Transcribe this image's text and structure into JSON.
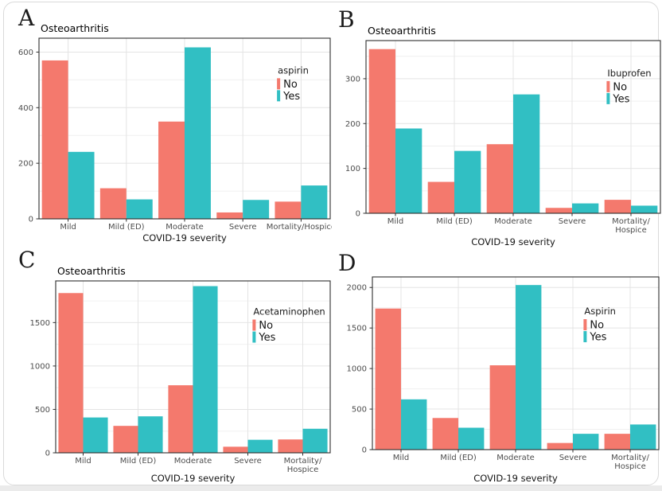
{
  "page": {
    "background": "#ffffff",
    "card_border": "#dadada",
    "bottom_strip_color": "#ebebeb"
  },
  "palette": {
    "no": "#F4796D",
    "yes": "#31BFC3",
    "grid_major": "#e4e4e4",
    "grid_minor": "#f0f0f0",
    "panel_border": "#2f2f2f",
    "tick_text": "#4d4d4d",
    "axis_label_text": "#141414",
    "title_text": "#000000"
  },
  "panels": [
    {
      "letter": "A"
    },
    {
      "letter": "B"
    },
    {
      "letter": "C"
    },
    {
      "letter": "D"
    }
  ],
  "chart_data": [
    {
      "type": "bar",
      "panel": "A",
      "title": "Osteoarthritis",
      "xlabel": "COVID-19 severity",
      "ylabel": "",
      "categories": [
        "Mild",
        "Mild (ED)",
        "Moderate",
        "Severe",
        "Mortality/Hospice"
      ],
      "tick_lines": [
        [
          "Mild"
        ],
        [
          "Mild (ED)"
        ],
        [
          "Moderate"
        ],
        [
          "Severe"
        ],
        [
          "Mortality/Hospice"
        ]
      ],
      "yticks": [
        0,
        200,
        400,
        600
      ],
      "yminor": [
        100,
        300,
        500
      ],
      "ylim": [
        0,
        650
      ],
      "grid": true,
      "legend": {
        "title": "aspirin",
        "position": "inside-right"
      },
      "series": [
        {
          "name": "No",
          "color": "#F4796D",
          "values": [
            570,
            110,
            350,
            23,
            62
          ]
        },
        {
          "name": "Yes",
          "color": "#31BFC3",
          "values": [
            241,
            70,
            617,
            68,
            120
          ]
        }
      ]
    },
    {
      "type": "bar",
      "panel": "B",
      "title": "Osteoarthritis",
      "xlabel": "COVID-19 severity",
      "ylabel": "",
      "categories": [
        "Mild",
        "Mild (ED)",
        "Moderate",
        "Severe",
        "Mortality/Hospice"
      ],
      "tick_lines": [
        [
          "Mild"
        ],
        [
          "Mild (ED)"
        ],
        [
          "Moderate"
        ],
        [
          "Severe"
        ],
        [
          "Mortality/",
          "Hospice"
        ]
      ],
      "yticks": [
        0,
        100,
        200,
        300
      ],
      "yminor": [
        50,
        150,
        250,
        350
      ],
      "ylim": [
        0,
        385
      ],
      "grid": true,
      "legend": {
        "title": "Ibuprofen",
        "position": "inside-right"
      },
      "series": [
        {
          "name": "No",
          "color": "#F4796D",
          "values": [
            366,
            70,
            154,
            12,
            30
          ]
        },
        {
          "name": "Yes",
          "color": "#31BFC3",
          "values": [
            189,
            139,
            265,
            22,
            17
          ]
        }
      ]
    },
    {
      "type": "bar",
      "panel": "C",
      "title": "Osteoarthritis",
      "xlabel": "COVID-19 severity",
      "ylabel": "",
      "categories": [
        "Mild",
        "Mild (ED)",
        "Moderate",
        "Severe",
        "Mortality/Hospice"
      ],
      "tick_lines": [
        [
          "Mild"
        ],
        [
          "Mild (ED)"
        ],
        [
          "Moderate"
        ],
        [
          "Severe"
        ],
        [
          "Mortality/",
          "Hospice"
        ]
      ],
      "yticks": [
        0,
        500,
        1000,
        1500
      ],
      "yminor": [
        250,
        750,
        1250,
        1750
      ],
      "ylim": [
        0,
        1980
      ],
      "grid": true,
      "legend": {
        "title": "Acetaminophen",
        "position": "inside-right"
      },
      "series": [
        {
          "name": "No",
          "color": "#F4796D",
          "values": [
            1840,
            310,
            778,
            70,
            154
          ]
        },
        {
          "name": "Yes",
          "color": "#31BFC3",
          "values": [
            407,
            420,
            1920,
            150,
            277
          ]
        }
      ]
    },
    {
      "type": "bar",
      "panel": "D",
      "title": "",
      "xlabel": "COVID-19 severity",
      "ylabel": "",
      "categories": [
        "Mild",
        "Mild (ED)",
        "Moderate",
        "Severe",
        "Mortality/Hospice"
      ],
      "tick_lines": [
        [
          "Mild"
        ],
        [
          "Mild (ED)"
        ],
        [
          "Moderate"
        ],
        [
          "Severe"
        ],
        [
          "Mortality/",
          "Hospice"
        ]
      ],
      "yticks": [
        0,
        500,
        1000,
        1500,
        2000
      ],
      "yminor": [
        250,
        750,
        1250,
        1750
      ],
      "ylim": [
        0,
        2130
      ],
      "grid": true,
      "legend": {
        "title": "Aspirin",
        "position": "inside-right"
      },
      "series": [
        {
          "name": "No",
          "color": "#F4796D",
          "values": [
            1740,
            390,
            1040,
            82,
            195
          ]
        },
        {
          "name": "Yes",
          "color": "#31BFC3",
          "values": [
            620,
            270,
            2030,
            195,
            310
          ]
        }
      ]
    }
  ]
}
